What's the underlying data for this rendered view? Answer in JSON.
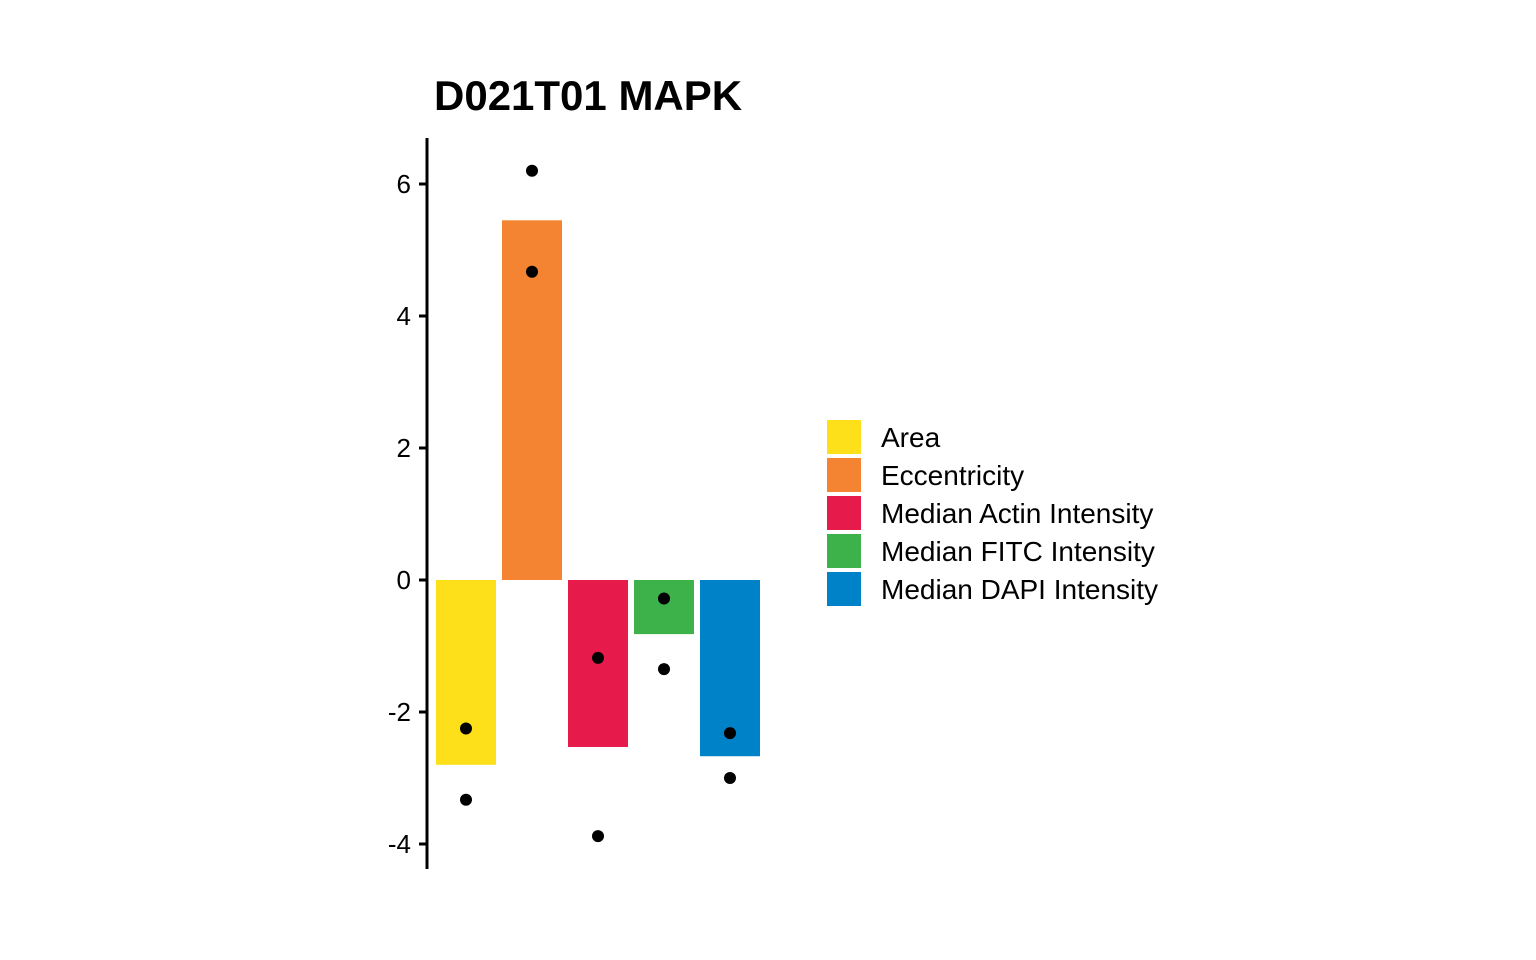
{
  "chart_data": {
    "type": "bar",
    "title": "D021T01 MAPK",
    "xlabel": "",
    "ylabel": "",
    "ylim": [
      -4.4,
      6.7
    ],
    "yticks": [
      6,
      4,
      2,
      0,
      -2,
      -4
    ],
    "ytick_labels": [
      "6",
      "4",
      "2",
      "0",
      "-2",
      "-4"
    ],
    "grid": false,
    "legend_position": "right",
    "categories": [
      "Area",
      "Eccentricity",
      "Median Actin Intensity",
      "Median FITC Intensity",
      "Median DAPI Intensity"
    ],
    "colors": [
      "#FDE01A",
      "#F58432",
      "#E61A4B",
      "#3DB14A",
      "#0082C8"
    ],
    "values": [
      -2.8,
      5.45,
      -2.53,
      -0.82,
      -2.67
    ],
    "points": [
      [
        -2.25,
        -3.33
      ],
      [
        6.2,
        4.67
      ],
      [
        -1.18,
        -3.88
      ],
      [
        -0.28,
        -1.35
      ],
      [
        -2.32,
        -3.0
      ]
    ]
  }
}
